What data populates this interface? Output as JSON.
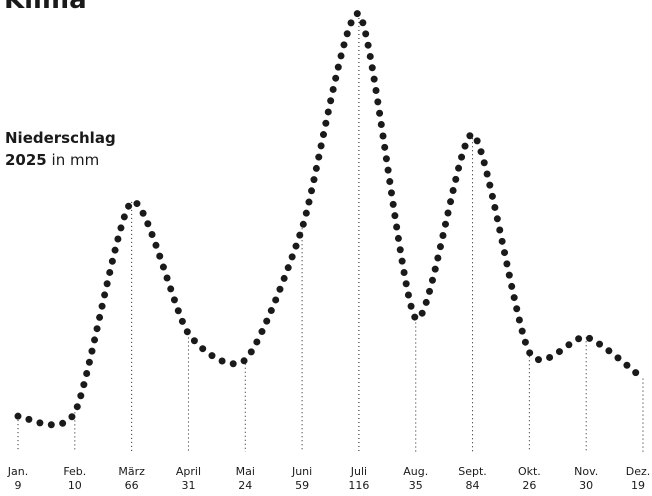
{
  "chart_data": {
    "type": "line",
    "title": "Klima",
    "y_label": "Niederschlag",
    "y_label_year": "2025",
    "y_label_unit": "in mm",
    "categories": [
      "Jan.",
      "Feb.",
      "März",
      "April",
      "Mai",
      "Juni",
      "Juli",
      "Aug.",
      "Sept.",
      "Okt.",
      "Nov.",
      "Dez."
    ],
    "values": [
      9,
      10,
      66,
      31,
      24,
      59,
      116,
      35,
      84,
      26,
      30,
      19
    ],
    "color": "#1a1a1a"
  }
}
